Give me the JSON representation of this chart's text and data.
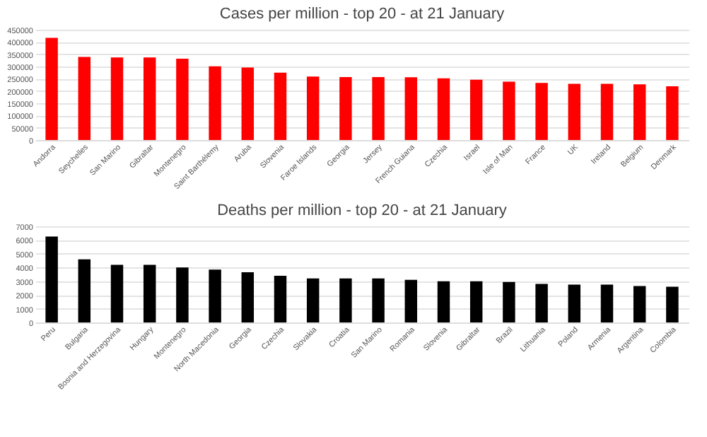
{
  "chart_data": [
    {
      "type": "bar",
      "title": "Cases per million - top 20 - at 21 January",
      "categories": [
        "Andorra",
        "Seychelles",
        "San Marino",
        "Gibraltar",
        "Montenegro",
        "Saint Barthélemy",
        "Aruba",
        "Slovenia",
        "Faroe Islands",
        "Georgia",
        "Jersey",
        "French Guiana",
        "Czechia",
        "Israel",
        "Isle of Man",
        "France",
        "UK",
        "Ireland",
        "Belgium",
        "Denmark"
      ],
      "series": [
        {
          "color": "#ff0000",
          "values": [
            417000,
            339000,
            337000,
            337000,
            332000,
            301000,
            296000,
            275000,
            259000,
            257000,
            257000,
            256000,
            252000,
            246000,
            238000,
            233000,
            229000,
            229000,
            227000,
            219000
          ]
        }
      ],
      "ylim": [
        0,
        450000
      ],
      "yticks": [
        0,
        50000,
        100000,
        150000,
        200000,
        250000,
        300000,
        350000,
        400000,
        450000
      ],
      "grid": "y"
    },
    {
      "type": "bar",
      "title": "Deaths per million - top 20 - at 21 January",
      "categories": [
        "Peru",
        "Bulgaria",
        "Bosnia and Herzegovina",
        "Hungary",
        "Montenegro",
        "North Macedonia",
        "Georgia",
        "Czechia",
        "Slovakia",
        "Croatia",
        "San Marino",
        "Romania",
        "Slovenia",
        "Gibraltar",
        "Brazil",
        "Lithuania",
        "Poland",
        "Armenia",
        "Argentina",
        "Colombia"
      ],
      "series": [
        {
          "color": "#000000",
          "values": [
            6250,
            4600,
            4200,
            4200,
            4000,
            3850,
            3650,
            3400,
            3200,
            3200,
            3200,
            3100,
            3000,
            3000,
            2950,
            2800,
            2750,
            2750,
            2650,
            2600
          ]
        }
      ],
      "ylim": [
        0,
        7000
      ],
      "yticks": [
        0,
        1000,
        2000,
        3000,
        4000,
        5000,
        6000,
        7000
      ],
      "grid": "y"
    }
  ]
}
